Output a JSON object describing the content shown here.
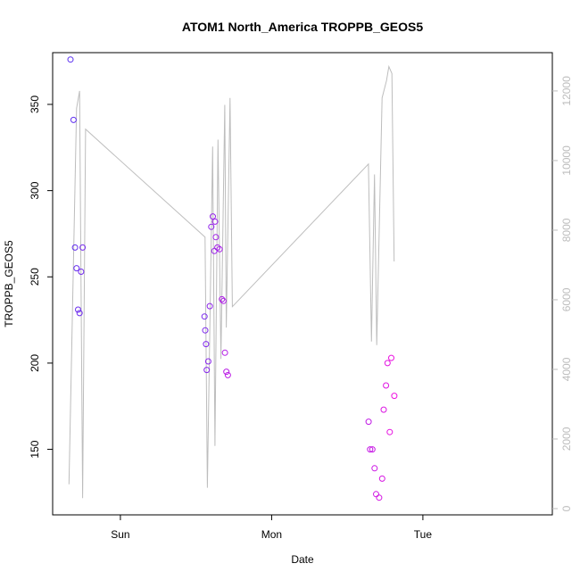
{
  "chart_data": {
    "type": "scatter",
    "title": "ATOM1 North_America TROPPB_GEOS5",
    "xlabel": "Date",
    "ylabel": "TROPPB_GEOS5",
    "x_ticks": [
      "Sun",
      "Mon",
      "Tue"
    ],
    "y_ticks": [
      150,
      200,
      250,
      300,
      350
    ],
    "ylim": [
      112,
      380
    ],
    "y2_ticks": [
      0,
      2000,
      4000,
      6000,
      8000,
      10000,
      12000
    ],
    "y2lim": [
      -180,
      13100
    ],
    "xlim_days": [
      -0.448,
      2.856
    ],
    "grid": false,
    "series": [
      {
        "type": "scatter",
        "color_start": "#5a2ff0",
        "color_end": "#ef10e0",
        "points": [
          {
            "x": -0.33,
            "y": 376
          },
          {
            "x": -0.31,
            "y": 341
          },
          {
            "x": -0.3,
            "y": 267
          },
          {
            "x": -0.29,
            "y": 255
          },
          {
            "x": -0.28,
            "y": 231
          },
          {
            "x": -0.27,
            "y": 229
          },
          {
            "x": -0.26,
            "y": 253
          },
          {
            "x": -0.25,
            "y": 267
          },
          {
            "x": 0.556,
            "y": 227
          },
          {
            "x": 0.561,
            "y": 219
          },
          {
            "x": 0.566,
            "y": 211
          },
          {
            "x": 0.571,
            "y": 196
          },
          {
            "x": 0.581,
            "y": 201
          },
          {
            "x": 0.591,
            "y": 233
          },
          {
            "x": 0.601,
            "y": 279
          },
          {
            "x": 0.611,
            "y": 285
          },
          {
            "x": 0.621,
            "y": 265
          },
          {
            "x": 0.626,
            "y": 282
          },
          {
            "x": 0.631,
            "y": 273
          },
          {
            "x": 0.641,
            "y": 267
          },
          {
            "x": 0.656,
            "y": 266
          },
          {
            "x": 0.671,
            "y": 237
          },
          {
            "x": 0.681,
            "y": 236
          },
          {
            "x": 0.691,
            "y": 206
          },
          {
            "x": 0.701,
            "y": 195
          },
          {
            "x": 0.711,
            "y": 193
          },
          {
            "x": 1.641,
            "y": 166
          },
          {
            "x": 1.651,
            "y": 150
          },
          {
            "x": 1.666,
            "y": 150
          },
          {
            "x": 1.681,
            "y": 139
          },
          {
            "x": 1.691,
            "y": 124
          },
          {
            "x": 1.711,
            "y": 122
          },
          {
            "x": 1.731,
            "y": 133
          },
          {
            "x": 1.741,
            "y": 173
          },
          {
            "x": 1.756,
            "y": 187
          },
          {
            "x": 1.766,
            "y": 200
          },
          {
            "x": 1.781,
            "y": 160
          },
          {
            "x": 1.791,
            "y": 203
          },
          {
            "x": 1.811,
            "y": 181
          }
        ]
      },
      {
        "type": "line",
        "axis": "right",
        "color": "#bdbdbd",
        "points": [
          {
            "x": -0.34,
            "y": 700
          },
          {
            "x": -0.29,
            "y": 11500
          },
          {
            "x": -0.27,
            "y": 12000
          },
          {
            "x": -0.25,
            "y": 300
          },
          {
            "x": -0.23,
            "y": 10900
          },
          {
            "x": 0.56,
            "y": 7800
          },
          {
            "x": 0.575,
            "y": 600
          },
          {
            "x": 0.61,
            "y": 10400
          },
          {
            "x": 0.625,
            "y": 1800
          },
          {
            "x": 0.645,
            "y": 10600
          },
          {
            "x": 0.665,
            "y": 4300
          },
          {
            "x": 0.69,
            "y": 11600
          },
          {
            "x": 0.7,
            "y": 5200
          },
          {
            "x": 0.725,
            "y": 11800
          },
          {
            "x": 0.74,
            "y": 5800
          },
          {
            "x": 1.64,
            "y": 9900
          },
          {
            "x": 1.66,
            "y": 4800
          },
          {
            "x": 1.68,
            "y": 9600
          },
          {
            "x": 1.695,
            "y": 4700
          },
          {
            "x": 1.73,
            "y": 11800
          },
          {
            "x": 1.76,
            "y": 12300
          },
          {
            "x": 1.775,
            "y": 12700
          },
          {
            "x": 1.795,
            "y": 12500
          },
          {
            "x": 1.81,
            "y": 7100
          }
        ]
      }
    ]
  }
}
